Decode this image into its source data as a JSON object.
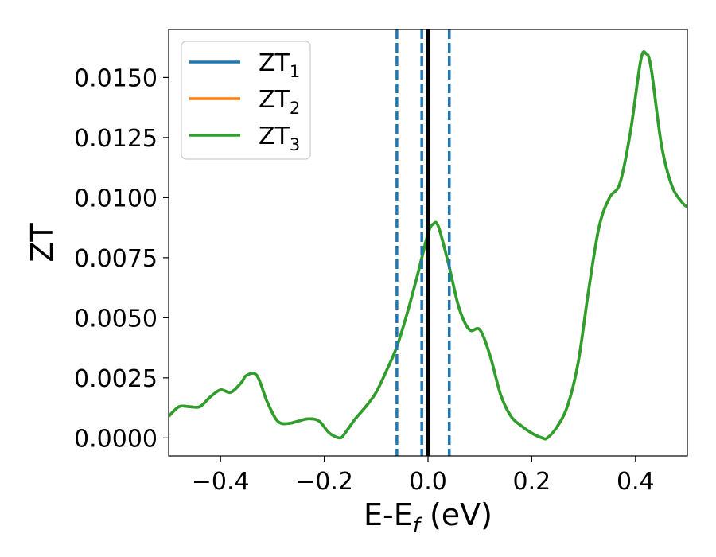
{
  "chart_data": {
    "type": "line",
    "title": "",
    "xlabel": {
      "main": "E-E",
      "subscript": "f",
      "suffix": " (eV)"
    },
    "ylabel": "ZT",
    "xlim": [
      -0.5,
      0.5
    ],
    "ylim": [
      -0.00075,
      0.017
    ],
    "x_ticks": [
      -0.4,
      -0.2,
      0.0,
      0.2,
      0.4
    ],
    "x_tick_labels": [
      "−0.4",
      "−0.2",
      "0.0",
      "0.2",
      "0.4"
    ],
    "y_ticks": [
      0.0,
      0.0025,
      0.005,
      0.0075,
      0.01,
      0.0125,
      0.015
    ],
    "y_tick_labels": [
      "0.0000",
      "0.0025",
      "0.0050",
      "0.0075",
      "0.0100",
      "0.0125",
      "0.0150"
    ],
    "grid": false,
    "legend_position": "top-left",
    "series": [
      {
        "legend_main": "ZT",
        "legend_sub": "1",
        "color": "#1f77b4"
      },
      {
        "legend_main": "ZT",
        "legend_sub": "2",
        "color": "#ff7f0e"
      },
      {
        "legend_main": "ZT",
        "legend_sub": "3",
        "color": "#2ca02c"
      }
    ],
    "curve": {
      "x": [
        -0.5,
        -0.48,
        -0.46,
        -0.44,
        -0.42,
        -0.4,
        -0.38,
        -0.36,
        -0.35,
        -0.33,
        -0.31,
        -0.29,
        -0.27,
        -0.25,
        -0.23,
        -0.21,
        -0.19,
        -0.17,
        -0.16,
        -0.14,
        -0.12,
        -0.1,
        -0.08,
        -0.06,
        -0.04,
        -0.02,
        0.0,
        0.01,
        0.02,
        0.04,
        0.06,
        0.08,
        0.1,
        0.12,
        0.14,
        0.16,
        0.18,
        0.2,
        0.22,
        0.23,
        0.25,
        0.27,
        0.29,
        0.31,
        0.33,
        0.35,
        0.37,
        0.39,
        0.41,
        0.42,
        0.43,
        0.45,
        0.47,
        0.49,
        0.5
      ],
      "y": [
        0.0009,
        0.0013,
        0.0013,
        0.0013,
        0.0017,
        0.002,
        0.0019,
        0.0023,
        0.0026,
        0.0026,
        0.0015,
        0.0007,
        0.0006,
        0.0007,
        0.0008,
        0.0007,
        0.0002,
        0.0,
        0.0002,
        0.0008,
        0.0013,
        0.0019,
        0.0028,
        0.0038,
        0.0052,
        0.0068,
        0.0085,
        0.0089,
        0.0088,
        0.0072,
        0.0054,
        0.0045,
        0.0045,
        0.0034,
        0.0018,
        0.0009,
        0.0005,
        0.0002,
        0.0,
        0.0,
        0.0005,
        0.0014,
        0.0032,
        0.0062,
        0.0088,
        0.01,
        0.0106,
        0.0127,
        0.0157,
        0.016,
        0.0154,
        0.0122,
        0.0105,
        0.0098,
        0.0096
      ]
    },
    "vlines": [
      {
        "x": -0.06,
        "style": "dashed",
        "color": "#1f77b4"
      },
      {
        "x": -0.012,
        "style": "dashed",
        "color": "#1f77b4"
      },
      {
        "x": 0.041,
        "style": "dashed",
        "color": "#1f77b4"
      },
      {
        "x": 0.0,
        "style": "solid",
        "color": "#000000"
      }
    ]
  }
}
